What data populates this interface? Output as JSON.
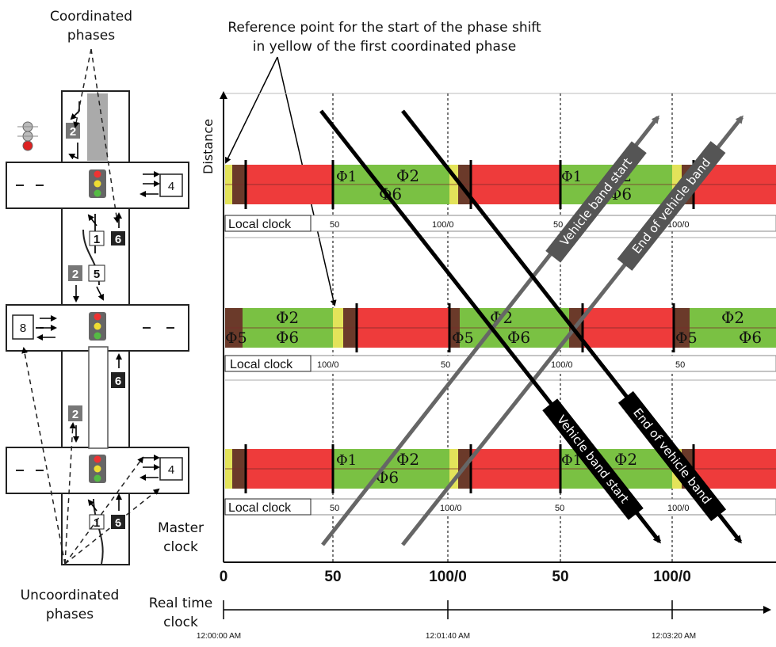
{
  "annotations": {
    "coordinated": "Coordinated\nphases",
    "uncoordinated": "Uncoordinated\nphases",
    "reference": "Reference point for the start of the phase shift\nin yellow of the first coordinated phase",
    "distance_axis": "Distance",
    "master_clock": "Master\nclock",
    "real_time_clock": "Real time\nclock"
  },
  "map": {
    "approach_numbers": {
      "top_left_2": "2",
      "top_east_4": "4",
      "top_1": "1",
      "top_6": "6",
      "mid_2": "2",
      "mid_5": "5",
      "mid_west_8": "8",
      "mid_6": "6",
      "low_2": "2",
      "bot_east_4": "4",
      "bot_1": "1",
      "bot_6": "6"
    }
  },
  "rows": [
    {
      "local_clock": "Local clock",
      "ticks": [
        "50",
        "100/0",
        "50",
        "100/0"
      ],
      "phase_labels": [
        "Φ1",
        "Φ2",
        "Φ6",
        "Φ1",
        "Φ2",
        "Φ6"
      ]
    },
    {
      "local_clock": "Local clock",
      "ticks": [
        "100/0",
        "50",
        "100/0",
        "50"
      ],
      "phase_labels": [
        "Φ2",
        "Φ5",
        "Φ6",
        "Φ2",
        "Φ5",
        "Φ6",
        "Φ2",
        "Φ5",
        "Φ6"
      ]
    },
    {
      "local_clock": "Local clock",
      "ticks": [
        "50",
        "100/0",
        "50",
        "100/0"
      ],
      "phase_labels": [
        "Φ1",
        "Φ2",
        "Φ6",
        "Φ1",
        "Φ2"
      ]
    }
  ],
  "bands": {
    "start_label": "Vehicle band start",
    "end_label": "End of vehicle band"
  },
  "master_ticks": [
    "0",
    "50",
    "100/0",
    "50",
    "100/0"
  ],
  "real_time_ticks": [
    "12:00:00 AM",
    "12:01:40 AM",
    "12:03:20 AM"
  ],
  "colors": {
    "red": "#ee3b3b",
    "green": "#7ac143",
    "yellow": "#e3e35a",
    "brown": "#6b3a2a",
    "band_grey": "#5a5a5a",
    "band_black": "#000000"
  }
}
